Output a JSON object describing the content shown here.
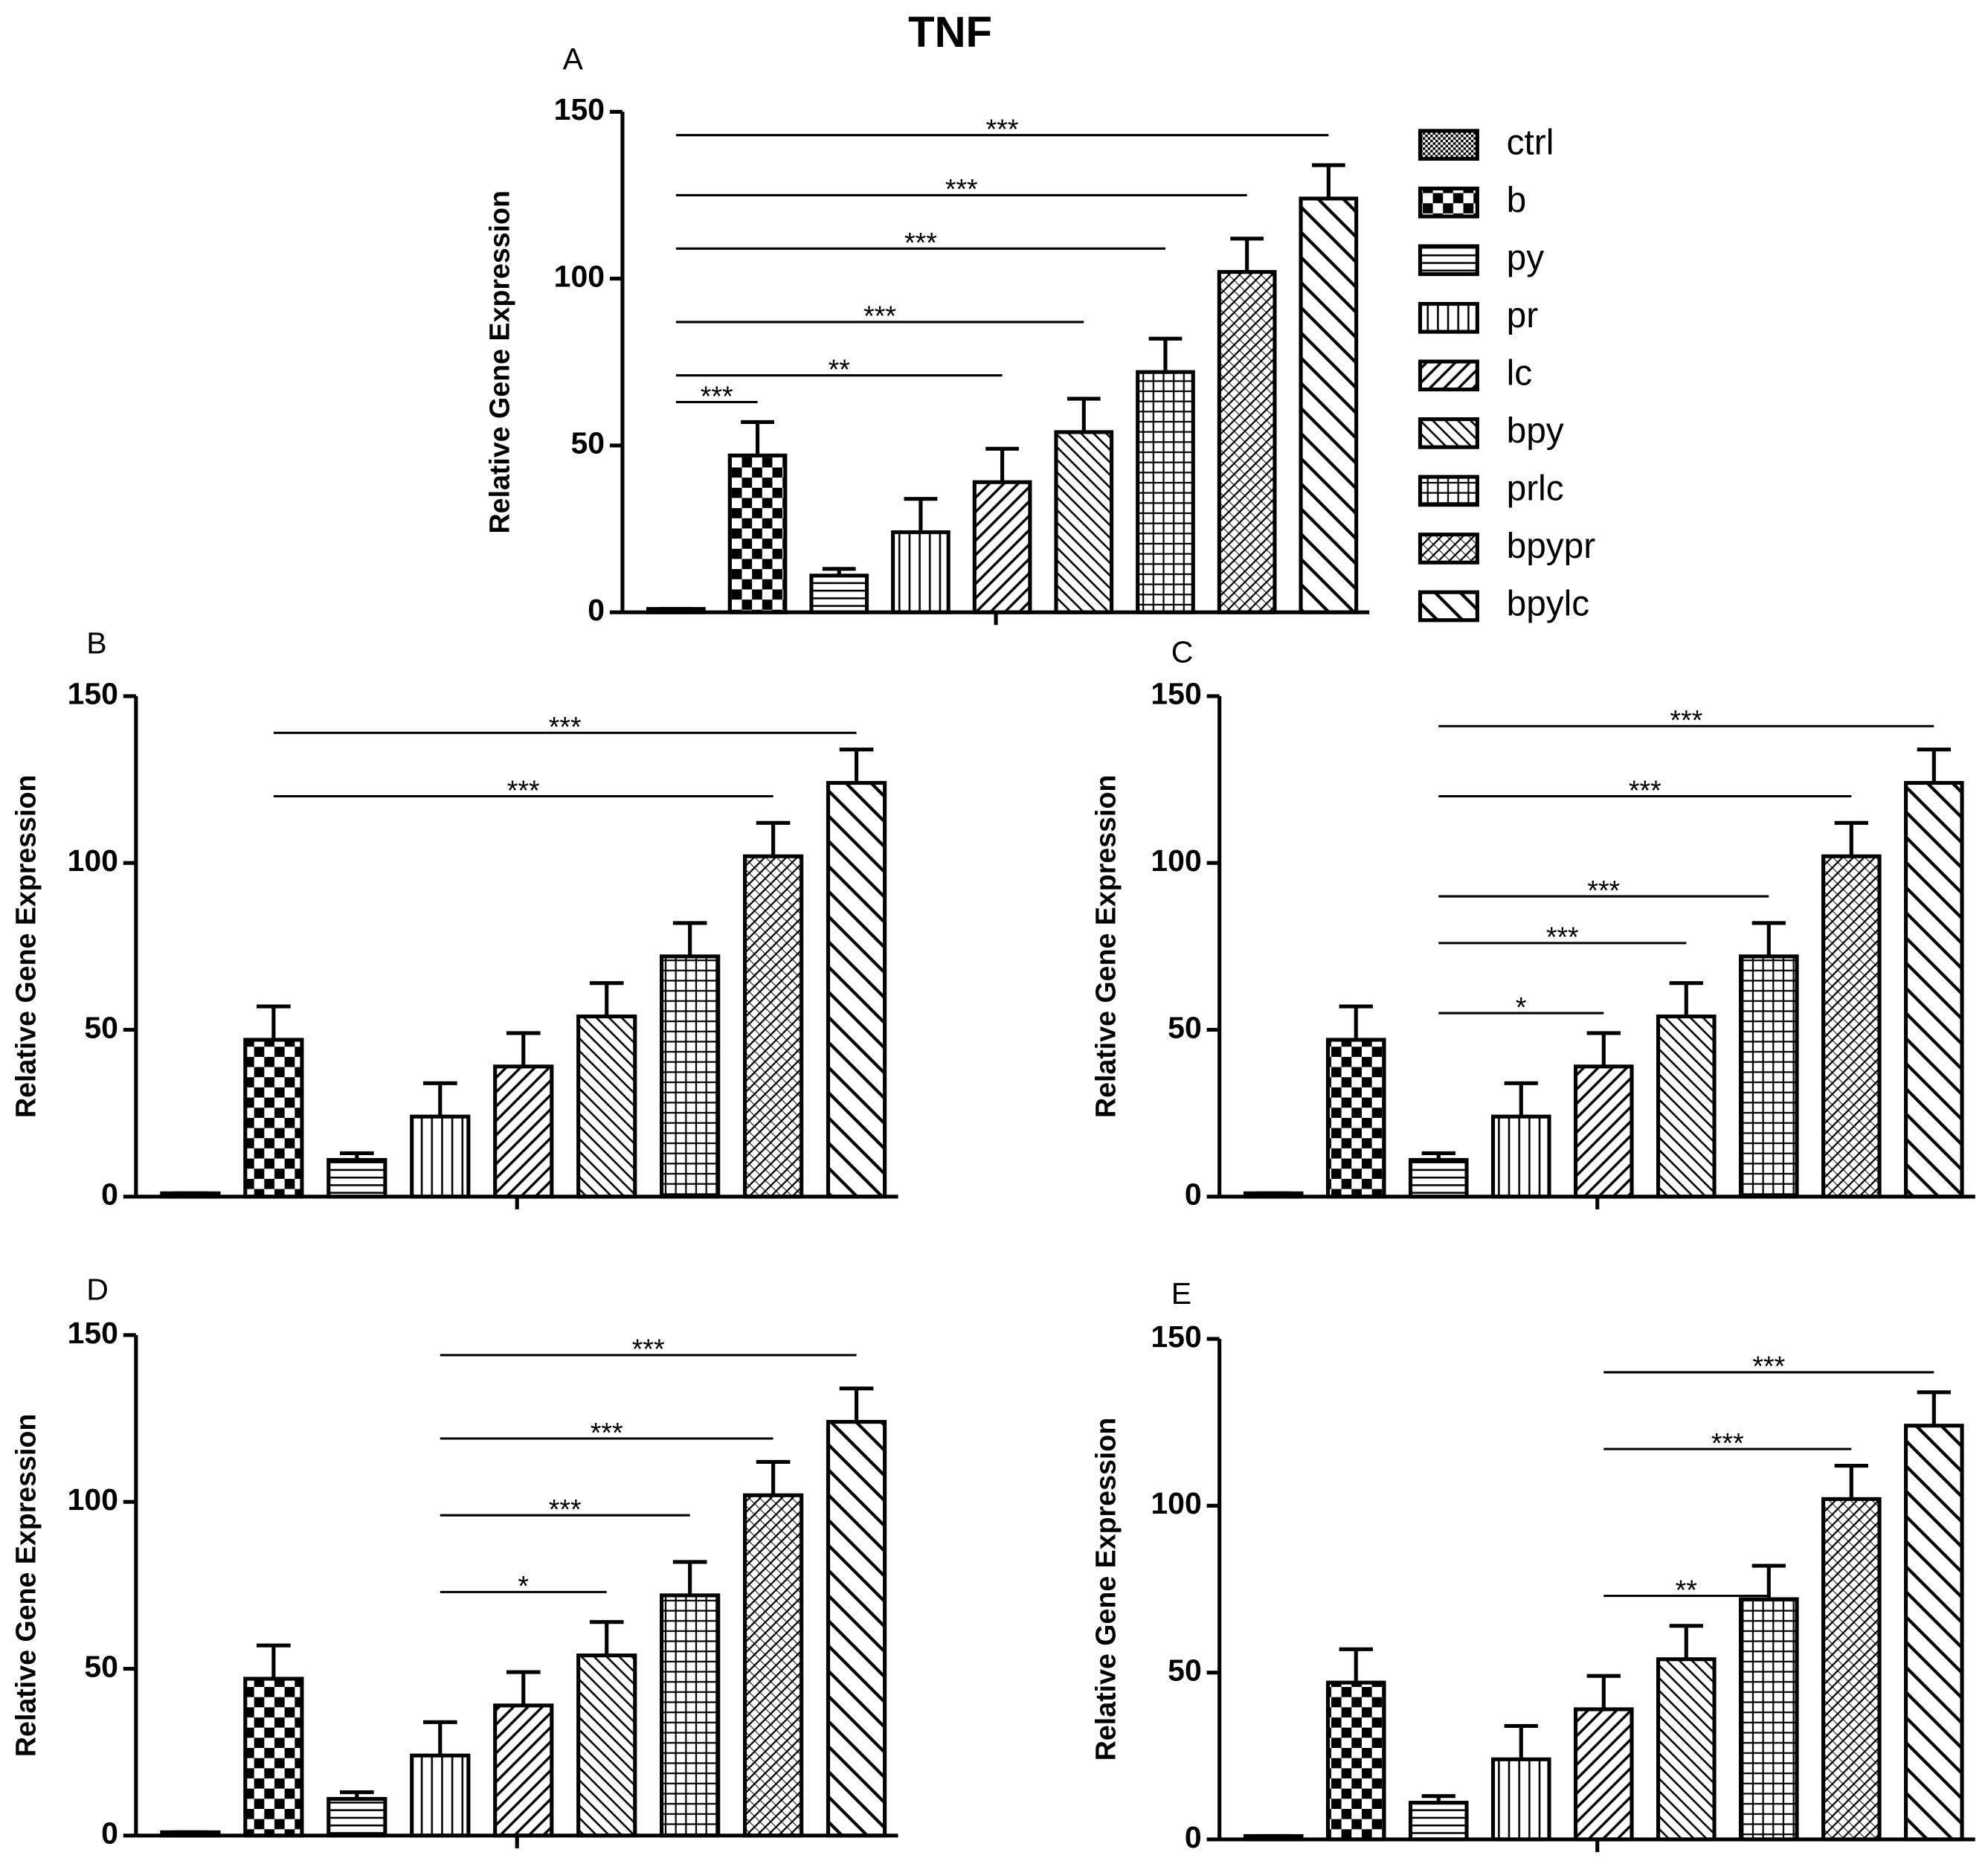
{
  "title": "TNF",
  "chart_data": [
    {
      "type": "bar",
      "label": "A",
      "ylabel": "Relative Gene Expression",
      "categories": [
        "ctrl",
        "b",
        "py",
        "pr",
        "lc",
        "bpy",
        "prlc",
        "bpypr",
        "bpylc"
      ],
      "values": [
        1,
        47,
        11,
        24,
        39,
        54,
        72,
        102,
        124
      ],
      "errors": [
        0,
        10,
        2,
        10,
        10,
        10,
        10,
        10,
        10
      ],
      "ylim": [
        0,
        150
      ],
      "yticks": [
        0,
        50,
        100,
        150
      ],
      "legend": "right",
      "annotations": [
        {
          "from": "ctrl",
          "to": "b",
          "text": "***",
          "y": 63
        },
        {
          "from": "ctrl",
          "to": "lc",
          "text": "**",
          "y": 71
        },
        {
          "from": "ctrl",
          "to": "bpy",
          "text": "***",
          "y": 87
        },
        {
          "from": "ctrl",
          "to": "prlc",
          "text": "***",
          "y": 109
        },
        {
          "from": "ctrl",
          "to": "bpypr",
          "text": "***",
          "y": 125
        },
        {
          "from": "ctrl",
          "to": "bpylc",
          "text": "***",
          "y": 143
        }
      ]
    },
    {
      "type": "bar",
      "label": "B",
      "ylabel": "Relative Gene Expression",
      "values": [
        1,
        47,
        11,
        24,
        39,
        54,
        72,
        102,
        124
      ],
      "errors": [
        0,
        10,
        2,
        10,
        10,
        10,
        10,
        10,
        10
      ],
      "ylim": [
        0,
        150
      ],
      "yticks": [
        0,
        50,
        100,
        150
      ],
      "annotations": [
        {
          "from": "b",
          "to": "bpypr",
          "text": "***",
          "y": 120
        },
        {
          "from": "b",
          "to": "bpylc",
          "text": "***",
          "y": 139
        }
      ]
    },
    {
      "type": "bar",
      "label": "C",
      "ylabel": "Relative Gene Expression",
      "values": [
        1,
        47,
        11,
        24,
        39,
        54,
        72,
        102,
        124
      ],
      "errors": [
        0,
        10,
        2,
        10,
        10,
        10,
        10,
        10,
        10
      ],
      "ylim": [
        0,
        150
      ],
      "yticks": [
        0,
        50,
        100,
        150
      ],
      "annotations": [
        {
          "from": "py",
          "to": "lc",
          "text": "*",
          "y": 55
        },
        {
          "from": "py",
          "to": "bpy",
          "text": "***",
          "y": 76
        },
        {
          "from": "py",
          "to": "prlc",
          "text": "***",
          "y": 90
        },
        {
          "from": "py",
          "to": "bpypr",
          "text": "***",
          "y": 120
        },
        {
          "from": "py",
          "to": "bpylc",
          "text": "***",
          "y": 141
        }
      ]
    },
    {
      "type": "bar",
      "label": "D",
      "ylabel": "Relative Gene Expression",
      "values": [
        1,
        47,
        11,
        24,
        39,
        54,
        72,
        102,
        124
      ],
      "errors": [
        0,
        10,
        2,
        10,
        10,
        10,
        10,
        10,
        10
      ],
      "ylim": [
        0,
        150
      ],
      "yticks": [
        0,
        50,
        100,
        150
      ],
      "annotations": [
        {
          "from": "pr",
          "to": "bpy",
          "text": "*",
          "y": 73
        },
        {
          "from": "pr",
          "to": "prlc",
          "text": "***",
          "y": 96
        },
        {
          "from": "pr",
          "to": "bpypr",
          "text": "***",
          "y": 119
        },
        {
          "from": "pr",
          "to": "bpylc",
          "text": "***",
          "y": 144
        }
      ]
    },
    {
      "type": "bar",
      "label": "E",
      "ylabel": "Relative Gene Expression",
      "values": [
        1,
        47,
        11,
        24,
        39,
        54,
        72,
        102,
        124
      ],
      "errors": [
        0,
        10,
        2,
        10,
        10,
        10,
        10,
        10,
        10
      ],
      "ylim": [
        0,
        150
      ],
      "yticks": [
        0,
        50,
        100,
        150
      ],
      "annotations": [
        {
          "from": "lc",
          "to": "prlc",
          "text": "**",
          "y": 73
        },
        {
          "from": "lc",
          "to": "bpypr",
          "text": "***",
          "y": 117
        },
        {
          "from": "lc",
          "to": "bpylc",
          "text": "***",
          "y": 140
        }
      ]
    }
  ]
}
